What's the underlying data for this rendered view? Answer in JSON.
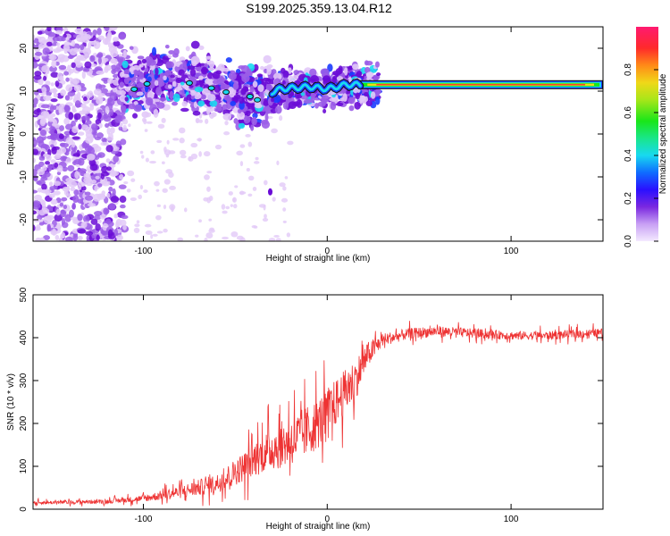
{
  "title": "S199.2025.359.13.04.R12",
  "chart_data": [
    {
      "type": "heatmap",
      "xlabel": "Height of straight line (km)",
      "ylabel": "Frequency (Hz)",
      "xlim": [
        -160,
        150
      ],
      "ylim": [
        -25,
        25
      ],
      "xticks": [
        -100,
        0,
        100
      ],
      "yticks": [
        -20,
        -10,
        0,
        10,
        20
      ],
      "colorbar": {
        "label": "Normalized spectral amplitude",
        "range": [
          0,
          1
        ],
        "ticks": [
          0.0,
          0.2,
          0.4,
          0.6,
          0.8
        ]
      },
      "ridge": [
        {
          "x": -105,
          "freq": 11.5
        },
        {
          "x": -80,
          "freq": 13.0
        },
        {
          "x": -60,
          "freq": 10.5
        },
        {
          "x": -40,
          "freq": 8.5
        },
        {
          "x": -25,
          "freq": 10.5
        },
        {
          "x": -10,
          "freq": 11.0
        },
        {
          "x": 0,
          "freq": 10.5
        },
        {
          "x": 10,
          "freq": 11.5
        },
        {
          "x": 20,
          "freq": 11.5
        },
        {
          "x": 150,
          "freq": 11.5
        }
      ],
      "colors": [
        "#e2c9f8",
        "#9b5de8",
        "#6a0bd6",
        "#1a3cff",
        "#18d9f0",
        "#19e619",
        "#f0d818",
        "#ff1a30"
      ]
    },
    {
      "type": "line",
      "xlabel": "Height of straight line (km)",
      "ylabel": "SNR (10 * v/v)",
      "xlim": [
        -160,
        150
      ],
      "ylim": [
        0,
        500
      ],
      "xticks": [
        -100,
        0,
        100
      ],
      "yticks": [
        0,
        100,
        200,
        300,
        400,
        500
      ],
      "series": [
        {
          "name": "SNR",
          "color": "#ee3333",
          "x": [
            -160,
            -120,
            -100,
            -80,
            -60,
            -45,
            -35,
            -25,
            -15,
            -5,
            5,
            15,
            22,
            30,
            45,
            60,
            80,
            100,
            120,
            150
          ],
          "y": [
            15,
            18,
            25,
            40,
            60,
            100,
            130,
            150,
            170,
            200,
            250,
            300,
            360,
            395,
            410,
            415,
            410,
            405,
            405,
            412
          ],
          "spread": [
            8,
            10,
            15,
            30,
            45,
            70,
            90,
            110,
            120,
            120,
            110,
            100,
            60,
            30,
            25,
            25,
            22,
            20,
            20,
            20
          ]
        }
      ]
    }
  ]
}
